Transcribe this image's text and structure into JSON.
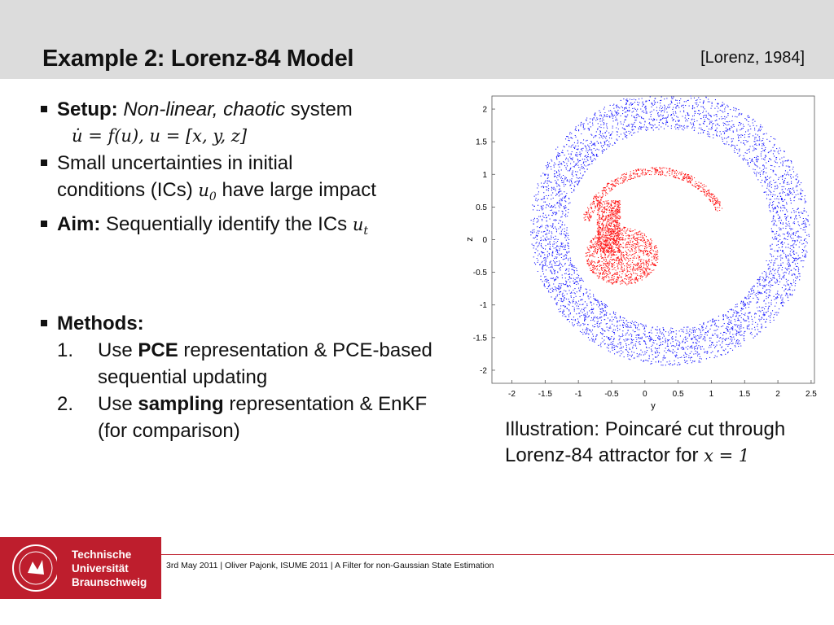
{
  "header": {
    "title": "Example 2: Lorenz-84 Model",
    "reference": "[Lorenz, 1984]"
  },
  "bullets": {
    "setup": {
      "label": "Setup:",
      "italic": "Non-linear, chaotic",
      "rest": " system",
      "equation": "u̇ = f(u), u = [x, y, z]"
    },
    "uncertainty": {
      "line1": "Small uncertainties in initial",
      "line2a": "conditions (ICs) ",
      "math": "u",
      "sub": "0",
      "line2b": " have large impact"
    },
    "aim": {
      "label": "Aim:",
      "text": " Sequentially identify the ICs ",
      "math": "u",
      "sub": "t"
    },
    "methods": {
      "label": "Methods:",
      "items": [
        {
          "num": "1.",
          "pre": "Use ",
          "bold": "PCE",
          "post": " representation & PCE-based sequential updating"
        },
        {
          "num": "2.",
          "pre": "Use ",
          "bold": "sampling",
          "post": " representation & EnKF (for comparison)"
        }
      ]
    }
  },
  "chart_data": {
    "type": "scatter",
    "title": "",
    "xlabel": "y",
    "ylabel": "z",
    "xlim": [
      -2.3,
      2.55
    ],
    "ylim": [
      -2.2,
      2.2
    ],
    "xticks": [
      "-2",
      "-1.5",
      "-1",
      "-0.5",
      "0",
      "0.5",
      "1",
      "1.5",
      "2",
      "2.5"
    ],
    "yticks": [
      "2",
      "1.5",
      "1",
      "0.5",
      "0",
      "-0.5",
      "-1",
      "-1.5",
      "-2"
    ],
    "series": [
      {
        "color": "#1a1aff",
        "description_points": "ring"
      },
      {
        "color": "#ff1010",
        "description_points": "inner"
      }
    ]
  },
  "caption": {
    "text1": "Illustration: Poincaré cut through Lorenz-84 attractor for ",
    "math": "x = 1"
  },
  "footer": {
    "logo_line1": "Technische",
    "logo_line2": "Universität",
    "logo_line3": "Braunschweig",
    "text": "3rd May 2011 | Oliver Pajonk, ISUME 2011 | A Filter for non-Gaussian State Estimation"
  },
  "colors": {
    "header_bg": "#dcdcdc",
    "brand_red": "#be1e2d",
    "blue_points": "#1a1aff",
    "red_points": "#ff1010"
  }
}
